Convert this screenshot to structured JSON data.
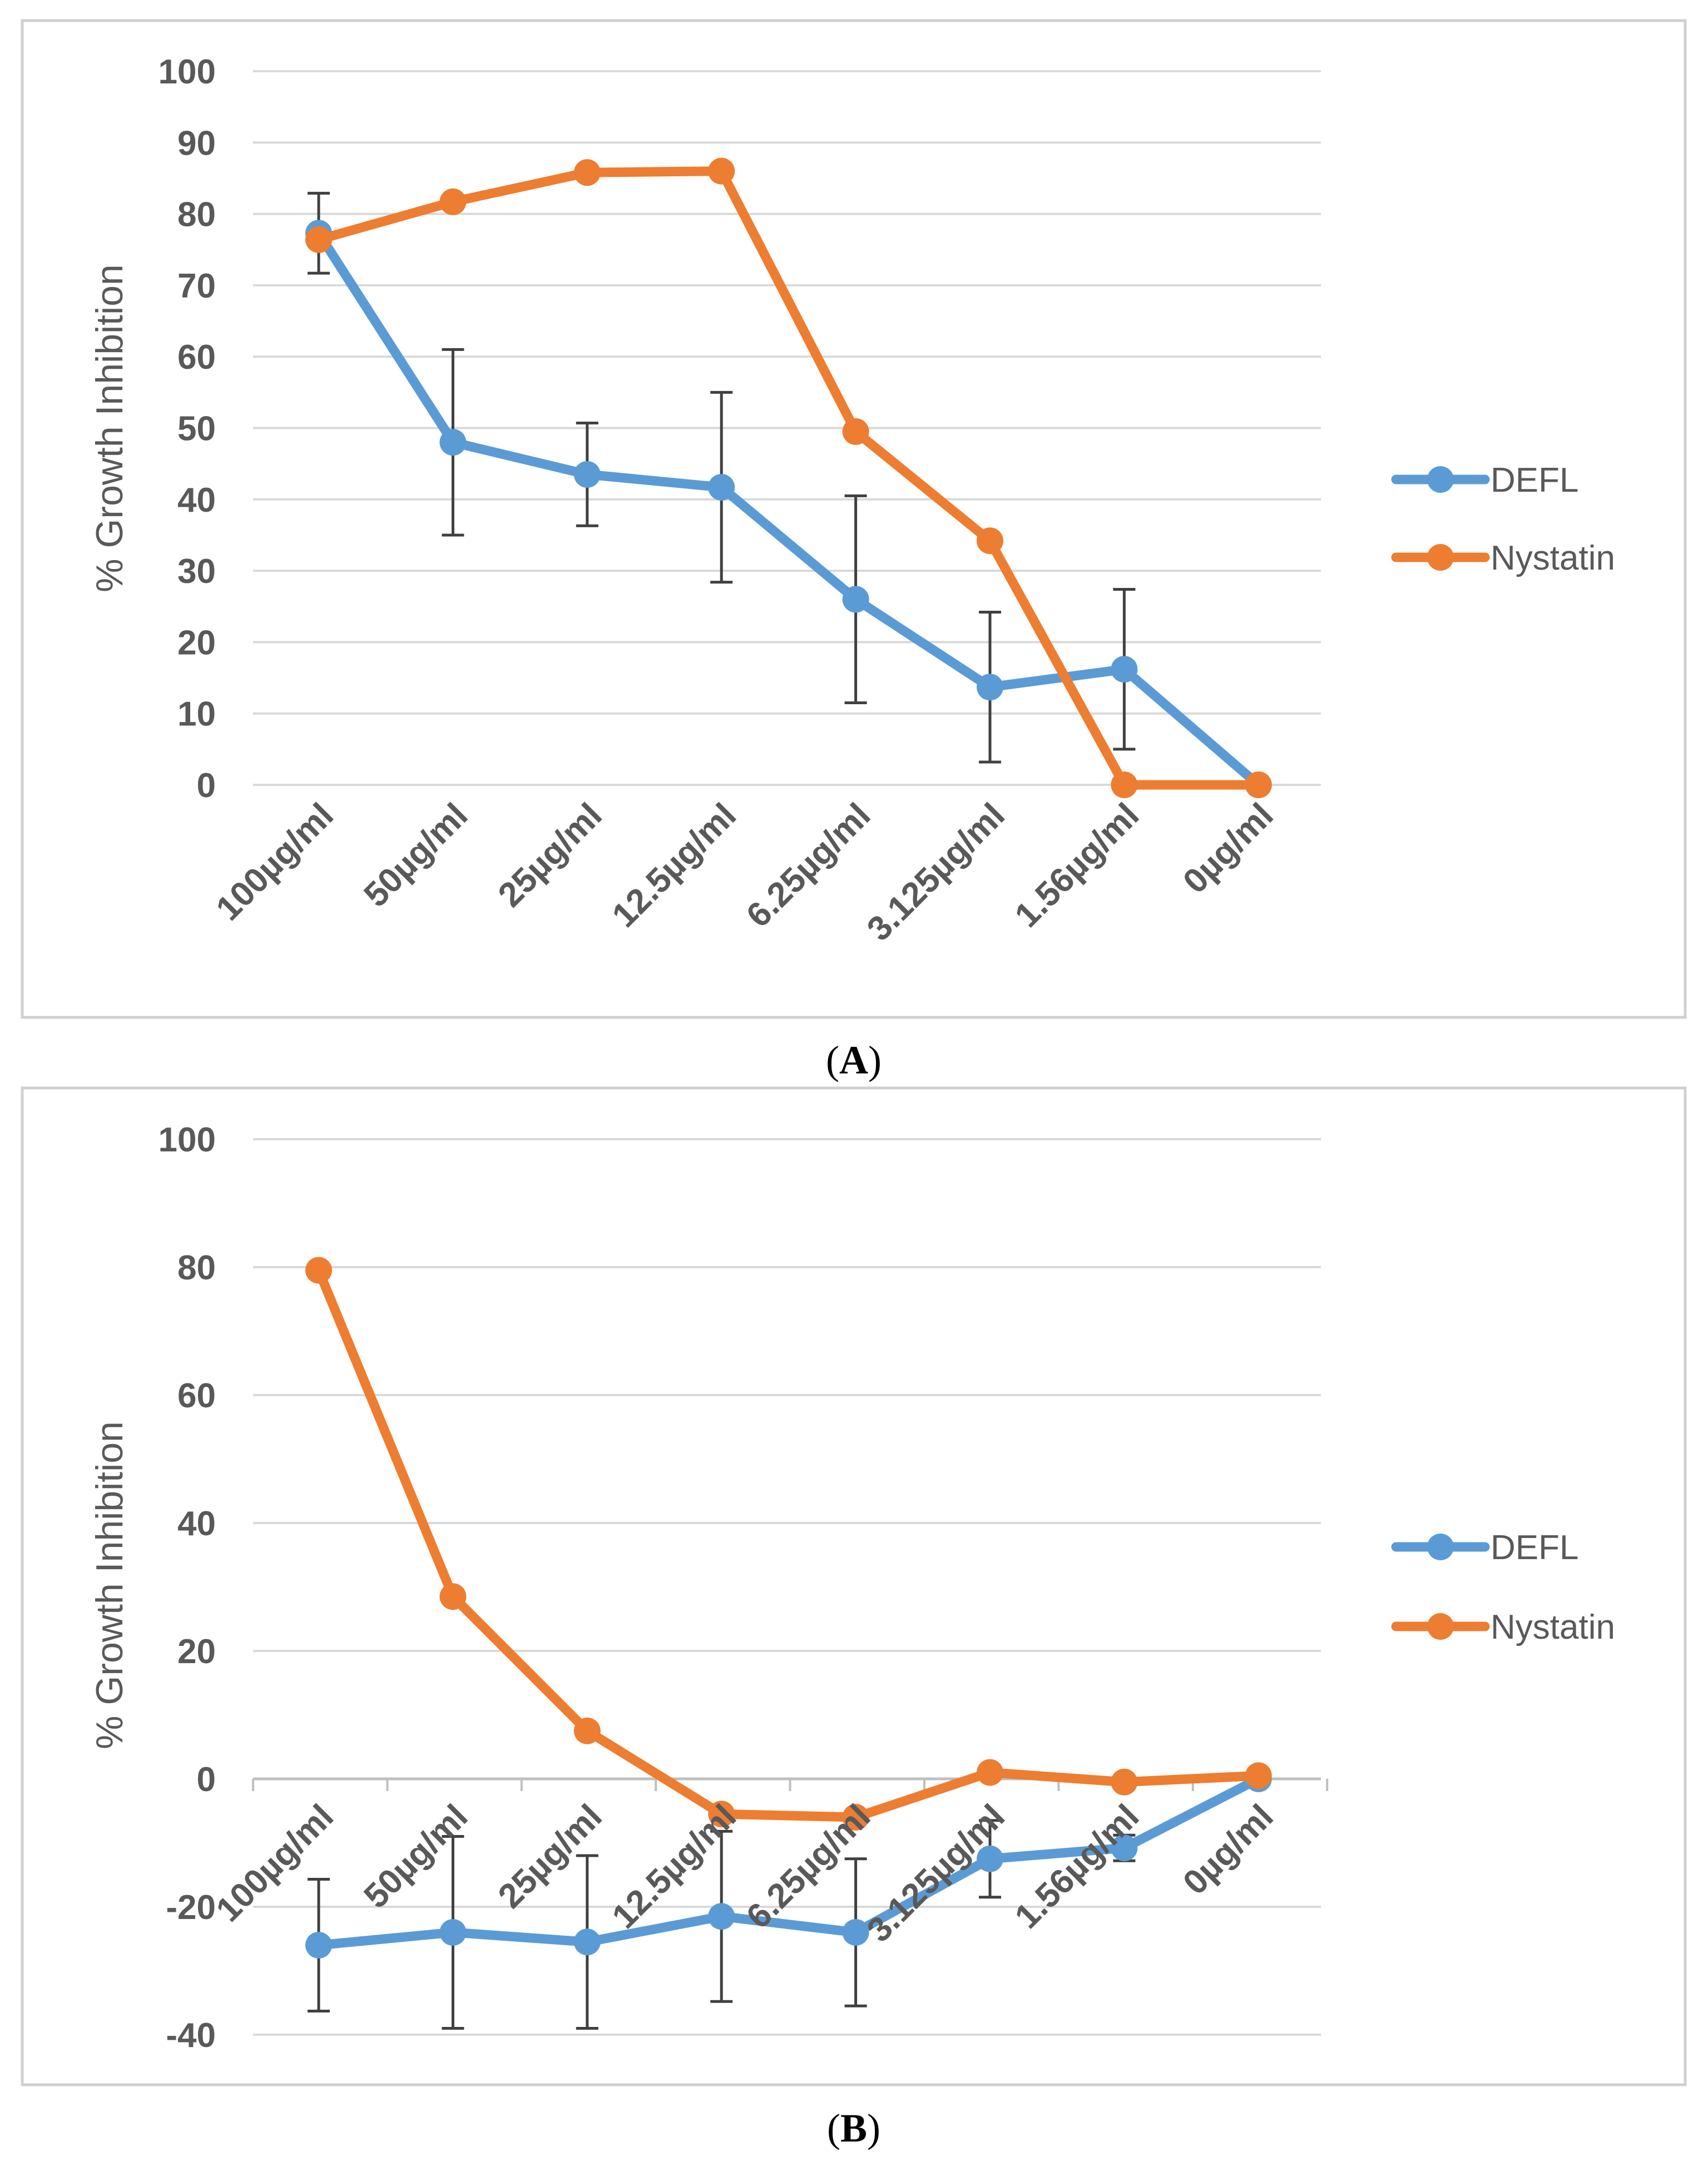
{
  "colors": {
    "defl": "#5b9bd5",
    "nystatin": "#ed7d31",
    "grid": "#d9d9d9",
    "axis_text": "#595959",
    "error_bar": "#404040",
    "frame": "#d0d0d0"
  },
  "chart_data": [
    {
      "type": "line",
      "panel": "A",
      "caption": "A",
      "ylabel": "% Growth Inhibition",
      "xlabel": "",
      "ylim": [
        0,
        100
      ],
      "yticks": [
        0,
        10,
        20,
        30,
        40,
        50,
        60,
        70,
        80,
        90,
        100
      ],
      "ytick_labels": [
        "0",
        "10",
        "20",
        "30",
        "40",
        "50",
        "60",
        "70",
        "80",
        "90",
        "100"
      ],
      "categories": [
        "100µg/ml",
        "50µg/ml",
        "25µg/ml",
        "12.5µg/ml",
        "6.25µg/ml",
        "3.125µg/ml",
        "1.56µg/ml",
        "0µg/ml"
      ],
      "legend": [
        "DEFL",
        "Nystatin"
      ],
      "legend_position": "right",
      "grid": true,
      "series": [
        {
          "name": "DEFL",
          "color_key": "defl",
          "values": [
            77.3,
            48.0,
            43.5,
            41.7,
            26.0,
            13.7,
            16.2,
            0
          ],
          "error": [
            5.6,
            13.0,
            7.2,
            13.3,
            14.5,
            10.5,
            11.2,
            0
          ]
        },
        {
          "name": "Nystatin",
          "color_key": "nystatin",
          "values": [
            76.4,
            81.7,
            85.8,
            86.0,
            49.5,
            34.2,
            0,
            0
          ],
          "error": null
        }
      ]
    },
    {
      "type": "line",
      "panel": "B",
      "caption": "B",
      "ylabel": "% Growth Inhibition",
      "xlabel": "",
      "ylim": [
        -40,
        100
      ],
      "yticks": [
        -40,
        -20,
        0,
        20,
        40,
        60,
        80,
        100
      ],
      "ytick_labels": [
        "-40",
        "-20",
        "0",
        "20",
        "40",
        "60",
        "80",
        "100"
      ],
      "categories": [
        "100µg/ml",
        "50µg/ml",
        "25µg/ml",
        "12.5µg/ml",
        "6.25µg/ml",
        "3.125µg/ml",
        "1.56µg/ml",
        "0µg/ml"
      ],
      "legend": [
        "DEFL",
        "Nystatin"
      ],
      "legend_position": "right",
      "grid": true,
      "series": [
        {
          "name": "DEFL",
          "color_key": "defl",
          "values": [
            -26.0,
            -24.0,
            -25.5,
            -21.5,
            -24.0,
            -12.5,
            -10.8,
            0
          ],
          "error": [
            10.3,
            15.0,
            13.5,
            13.3,
            11.5,
            6.0,
            2.0,
            0
          ]
        },
        {
          "name": "Nystatin",
          "color_key": "nystatin",
          "values": [
            79.5,
            28.5,
            7.5,
            -5.5,
            -6.0,
            1.0,
            -0.5,
            0.5
          ],
          "error": null
        }
      ]
    }
  ]
}
